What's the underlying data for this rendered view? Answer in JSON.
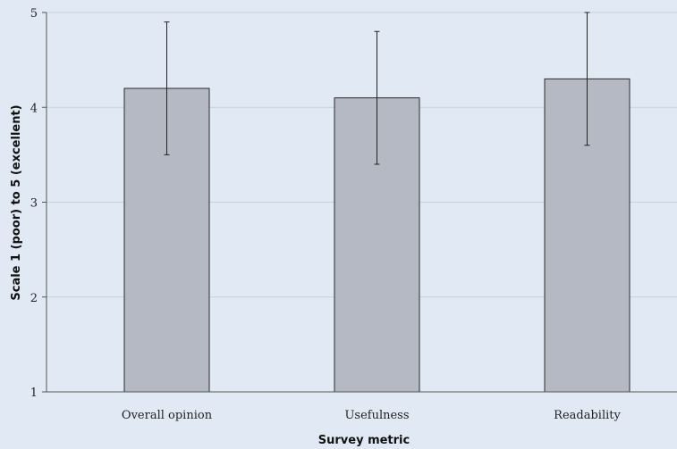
{
  "chart_data": {
    "type": "bar",
    "title": "",
    "xlabel": "Survey metric",
    "ylabel": "Scale 1 (poor) to 5 (excellent)",
    "categories": [
      "Overall opinion",
      "Usefulness",
      "Readability"
    ],
    "values": [
      4.2,
      4.1,
      4.3
    ],
    "error_low": [
      3.5,
      3.4,
      3.6
    ],
    "error_high": [
      4.9,
      4.8,
      5.0
    ],
    "ylim": [
      1,
      5
    ],
    "yticks": [
      "1",
      "2",
      "3",
      "4",
      "5"
    ],
    "grid": "horizontal",
    "legend": "none",
    "colors": {
      "background": "#e1eaf4",
      "bar_fill": "#b5b9c3",
      "bar_stroke": "#2b2b2b",
      "grid": "#c3d1e0",
      "axis": "#555555",
      "error_bar": "#222222"
    }
  }
}
